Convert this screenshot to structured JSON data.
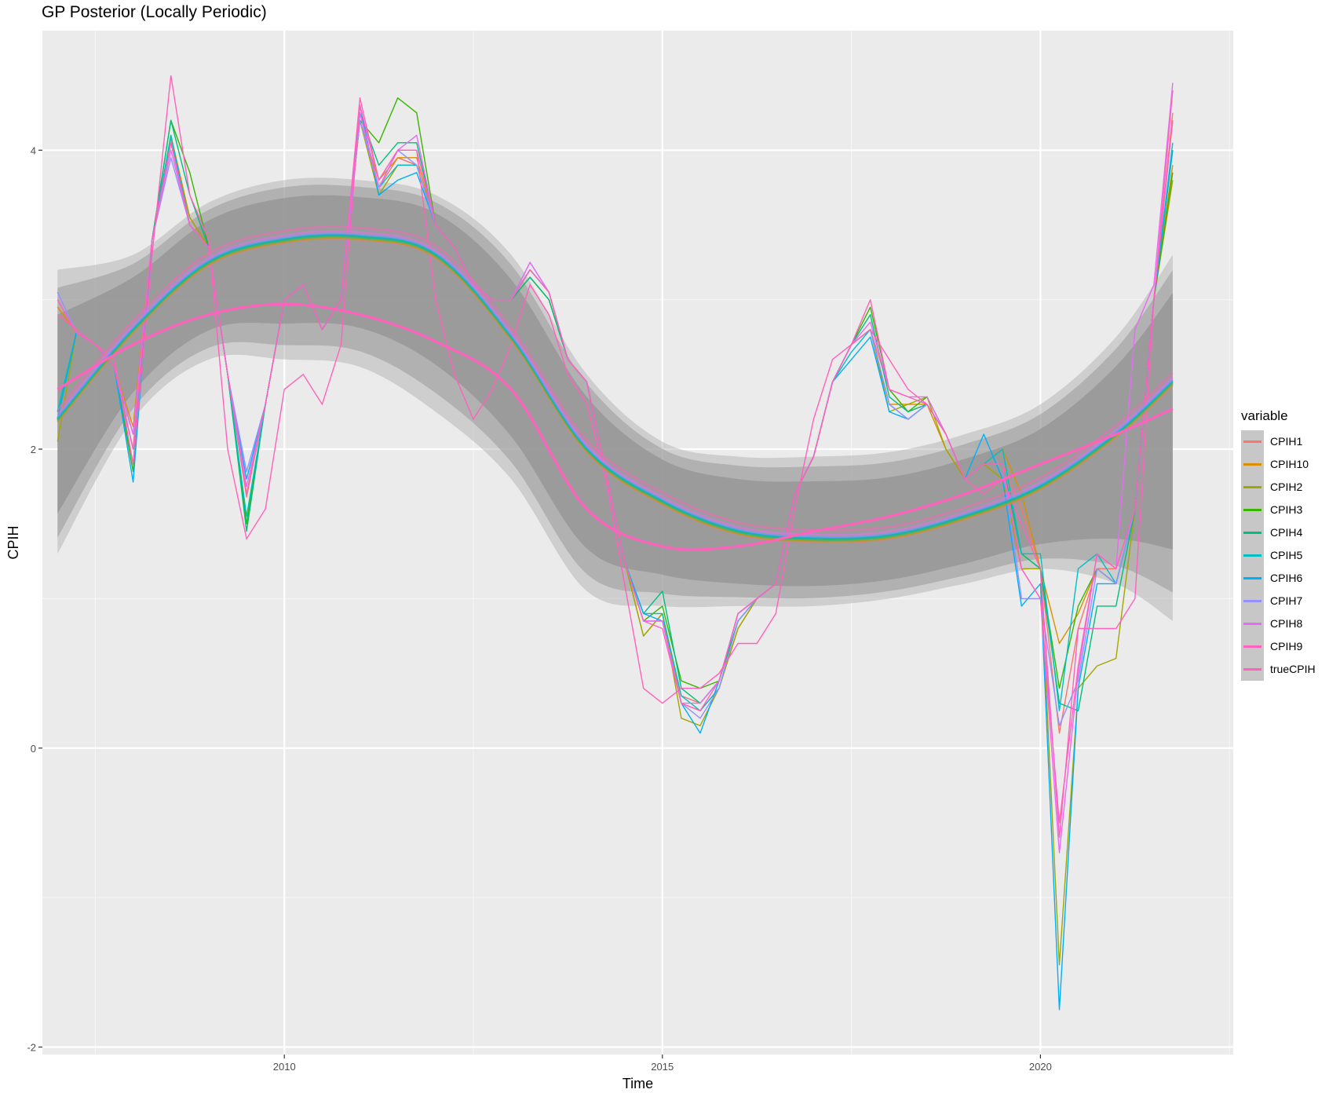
{
  "chart_data": {
    "type": "line",
    "title": "GP Posterior (Locally Periodic)",
    "xlabel": "Time",
    "ylabel": "CPIH",
    "xlim": [
      2006.8,
      2022.55
    ],
    "ylim": [
      -2.05,
      4.8
    ],
    "x_ticks": [
      2010,
      2015,
      2020
    ],
    "y_ticks": [
      -2,
      0,
      2,
      4
    ],
    "grid": true,
    "legend": {
      "title": "variable",
      "placement": "right"
    },
    "colors": {
      "CPIH1": "#F8766D",
      "CPIH10": "#D89000",
      "CPIH2": "#A3A500",
      "CPIH3": "#39B600",
      "CPIH4": "#00BF7D",
      "CPIH5": "#00BFC4",
      "CPIH6": "#00B0F6",
      "CPIH7": "#9590FF",
      "CPIH8": "#E76BF3",
      "CPIH9": "#FF62BC",
      "trueCPIH": "#FF62BC"
    },
    "band_color": "#999999",
    "x": [
      2007.0,
      2007.25,
      2007.5,
      2007.75,
      2008.0,
      2008.25,
      2008.5,
      2008.75,
      2009.0,
      2009.25,
      2009.5,
      2009.75,
      2010.0,
      2010.25,
      2010.5,
      2010.75,
      2011.0,
      2011.25,
      2011.5,
      2011.75,
      2012.0,
      2012.25,
      2012.5,
      2012.75,
      2013.0,
      2013.25,
      2013.5,
      2013.75,
      2014.0,
      2014.25,
      2014.5,
      2014.75,
      2015.0,
      2015.25,
      2015.5,
      2015.75,
      2016.0,
      2016.25,
      2016.5,
      2016.75,
      2017.0,
      2017.25,
      2017.5,
      2017.75,
      2018.0,
      2018.25,
      2018.5,
      2018.75,
      2019.0,
      2019.25,
      2019.5,
      2019.75,
      2020.0,
      2020.25,
      2020.5,
      2020.75,
      2021.0,
      2021.25,
      2021.5,
      2021.75
    ],
    "truth": [
      2.9,
      2.8,
      2.7,
      2.6,
      1.9,
      3.3,
      4.5,
      3.7,
      3.4,
      2.0,
      1.4,
      1.6,
      2.4,
      2.5,
      2.3,
      2.7,
      4.3,
      3.8,
      4.0,
      4.0,
      3.0,
      2.5,
      2.2,
      2.4,
      2.7,
      3.1,
      2.9,
      2.5,
      2.3,
      1.8,
      1.1,
      0.4,
      0.3,
      0.4,
      0.4,
      0.5,
      0.7,
      0.7,
      0.9,
      1.6,
      2.2,
      2.6,
      2.7,
      2.8,
      2.6,
      2.4,
      2.3,
      2.1,
      1.8,
      1.7,
      1.8,
      1.5,
      1.2,
      -0.6,
      0.8,
      0.8,
      0.8,
      1.0,
      3.0,
      4.2
    ],
    "series": [
      {
        "name": "CPIH1",
        "values": [
          2.95,
          2.78,
          2.7,
          2.55,
          2.1,
          3.4,
          4.08,
          3.5,
          3.35,
          2.5,
          1.68,
          2.3,
          3.0,
          3.1,
          2.8,
          3.0,
          4.2,
          3.75,
          3.95,
          3.9,
          3.5,
          3.35,
          3.1,
          3.0,
          3.0,
          3.2,
          3.05,
          2.6,
          2.45,
          1.85,
          1.25,
          0.85,
          0.85,
          0.35,
          0.3,
          0.45,
          0.9,
          1.0,
          1.1,
          1.7,
          1.95,
          2.45,
          2.7,
          2.8,
          2.4,
          2.25,
          2.3,
          2.1,
          1.8,
          1.9,
          1.9,
          1.6,
          1.2,
          0.1,
          0.8,
          1.2,
          1.2,
          1.6,
          3.0,
          4.25
        ]
      },
      {
        "name": "CPIH10",
        "values": [
          2.95,
          2.78,
          2.7,
          2.55,
          2.15,
          3.4,
          4.1,
          3.55,
          3.35,
          2.5,
          1.7,
          2.3,
          3.0,
          3.1,
          2.8,
          3.0,
          4.2,
          3.8,
          3.95,
          3.95,
          3.5,
          3.35,
          3.1,
          3.0,
          3.0,
          3.2,
          3.05,
          2.6,
          2.45,
          1.85,
          1.25,
          0.75,
          0.9,
          0.3,
          0.25,
          0.4,
          0.8,
          1.0,
          1.1,
          1.7,
          1.95,
          2.45,
          2.7,
          2.8,
          2.3,
          2.3,
          2.3,
          2.0,
          1.8,
          1.9,
          2.0,
          1.7,
          1.2,
          0.7,
          0.9,
          1.2,
          1.1,
          1.6,
          3.0,
          3.9
        ]
      },
      {
        "name": "CPIH2",
        "values": [
          2.05,
          2.78,
          2.7,
          2.55,
          2.0,
          3.4,
          4.05,
          3.55,
          3.35,
          2.5,
          1.5,
          2.3,
          3.0,
          3.1,
          2.8,
          3.0,
          4.2,
          3.7,
          3.9,
          3.9,
          3.5,
          3.35,
          3.1,
          3.0,
          3.0,
          3.15,
          3.0,
          2.6,
          2.45,
          1.85,
          1.25,
          0.75,
          0.9,
          0.2,
          0.15,
          0.4,
          0.8,
          1.0,
          1.1,
          1.7,
          1.95,
          2.45,
          2.7,
          2.8,
          2.25,
          2.3,
          2.35,
          2.0,
          1.8,
          1.9,
          1.8,
          1.2,
          1.2,
          -1.45,
          0.4,
          0.55,
          0.6,
          1.6,
          3.0,
          3.8
        ]
      },
      {
        "name": "CPIH3",
        "values": [
          2.2,
          2.78,
          2.7,
          2.55,
          1.85,
          3.4,
          4.2,
          3.85,
          3.35,
          2.5,
          1.5,
          2.3,
          3.0,
          3.1,
          2.8,
          3.0,
          4.2,
          4.05,
          4.35,
          4.25,
          3.5,
          3.35,
          3.1,
          3.0,
          3.0,
          3.15,
          3.0,
          2.6,
          2.45,
          1.85,
          1.25,
          0.85,
          0.95,
          0.45,
          0.4,
          0.45,
          0.85,
          1.0,
          1.1,
          1.7,
          1.95,
          2.45,
          2.7,
          2.95,
          2.4,
          2.25,
          2.35,
          2.1,
          1.8,
          1.9,
          1.9,
          1.3,
          1.2,
          0.4,
          0.95,
          1.2,
          1.1,
          1.6,
          3.0,
          3.85
        ]
      },
      {
        "name": "CPIH4",
        "values": [
          2.25,
          2.78,
          2.7,
          2.55,
          1.9,
          3.4,
          4.2,
          3.7,
          3.35,
          2.5,
          1.45,
          2.3,
          3.0,
          3.1,
          2.8,
          3.0,
          4.25,
          3.9,
          4.05,
          4.05,
          3.5,
          3.35,
          3.1,
          3.0,
          3.0,
          3.15,
          3.0,
          2.6,
          2.45,
          1.85,
          1.25,
          0.9,
          1.05,
          0.4,
          0.3,
          0.45,
          0.85,
          1.0,
          1.1,
          1.7,
          1.95,
          2.45,
          2.7,
          2.9,
          2.35,
          2.25,
          2.3,
          2.1,
          1.8,
          1.9,
          1.9,
          1.3,
          1.2,
          0.3,
          0.25,
          0.95,
          0.95,
          1.6,
          3.0,
          4.0
        ]
      },
      {
        "name": "CPIH5",
        "values": [
          2.25,
          2.78,
          2.7,
          2.55,
          2.0,
          3.4,
          4.1,
          3.5,
          3.35,
          2.5,
          1.55,
          2.3,
          3.0,
          3.1,
          2.8,
          3.0,
          4.25,
          3.75,
          3.9,
          3.9,
          3.5,
          3.35,
          3.1,
          3.0,
          3.0,
          3.2,
          3.05,
          2.6,
          2.45,
          1.85,
          1.25,
          0.9,
          0.9,
          0.35,
          0.25,
          0.4,
          0.85,
          1.0,
          1.1,
          1.7,
          1.95,
          2.45,
          2.65,
          2.8,
          2.3,
          2.2,
          2.3,
          2.1,
          1.8,
          1.9,
          2.0,
          1.3,
          1.3,
          0.25,
          1.2,
          1.3,
          1.1,
          1.6,
          3.0,
          4.05
        ]
      },
      {
        "name": "CPIH6",
        "values": [
          2.2,
          2.78,
          2.7,
          2.55,
          1.78,
          3.4,
          4.05,
          3.5,
          3.35,
          2.5,
          1.8,
          2.3,
          3.0,
          3.1,
          2.8,
          3.0,
          4.3,
          3.7,
          3.8,
          3.85,
          3.5,
          3.35,
          3.1,
          3.0,
          3.0,
          3.2,
          3.05,
          2.6,
          2.45,
          1.85,
          1.25,
          0.9,
          0.85,
          0.3,
          0.1,
          0.45,
          0.9,
          1.0,
          1.1,
          1.7,
          1.95,
          2.45,
          2.6,
          2.75,
          2.25,
          2.2,
          2.3,
          2.1,
          1.8,
          2.1,
          1.8,
          0.95,
          1.1,
          -1.75,
          0.4,
          1.1,
          1.1,
          1.6,
          3.0,
          4.0
        ]
      },
      {
        "name": "CPIH7",
        "values": [
          3.05,
          2.78,
          2.7,
          2.55,
          2.1,
          3.4,
          3.95,
          3.5,
          3.35,
          2.5,
          1.85,
          2.3,
          3.0,
          3.1,
          2.8,
          3.0,
          4.2,
          3.75,
          4.0,
          3.9,
          3.5,
          3.35,
          3.1,
          3.0,
          3.0,
          3.25,
          3.05,
          2.6,
          2.45,
          1.85,
          1.25,
          0.85,
          0.85,
          0.3,
          0.2,
          0.4,
          0.85,
          1.0,
          1.1,
          1.7,
          1.95,
          2.45,
          2.7,
          2.8,
          2.3,
          2.2,
          2.3,
          2.1,
          1.8,
          1.9,
          1.9,
          1.0,
          1.0,
          0.15,
          0.45,
          1.2,
          1.1,
          1.6,
          3.0,
          4.2
        ]
      },
      {
        "name": "CPIH8",
        "values": [
          3.0,
          2.78,
          2.7,
          2.55,
          2.1,
          3.4,
          4.0,
          3.5,
          3.35,
          2.5,
          1.75,
          2.3,
          3.0,
          3.1,
          2.8,
          3.0,
          4.25,
          3.75,
          4.0,
          4.1,
          3.5,
          3.35,
          3.1,
          3.0,
          3.0,
          3.25,
          3.05,
          2.6,
          2.45,
          1.85,
          1.25,
          0.85,
          0.85,
          0.3,
          0.3,
          0.45,
          0.9,
          1.0,
          1.1,
          1.7,
          1.95,
          2.45,
          2.7,
          2.85,
          2.4,
          2.35,
          2.35,
          2.1,
          1.8,
          1.9,
          1.9,
          1.2,
          1.0,
          -0.7,
          0.5,
          1.3,
          1.2,
          2.8,
          3.1,
          4.45
        ]
      },
      {
        "name": "CPIH9",
        "values": [
          3.0,
          2.78,
          2.7,
          2.55,
          2.0,
          3.4,
          4.05,
          3.5,
          3.35,
          2.5,
          1.7,
          2.3,
          3.0,
          3.1,
          2.8,
          3.0,
          4.35,
          3.8,
          4.0,
          4.0,
          3.5,
          3.35,
          3.1,
          3.0,
          3.0,
          3.2,
          3.05,
          2.6,
          2.45,
          1.85,
          1.25,
          0.85,
          0.8,
          0.3,
          0.25,
          0.45,
          0.9,
          1.0,
          1.1,
          1.7,
          1.95,
          2.45,
          2.7,
          3.0,
          2.4,
          2.35,
          2.3,
          2.1,
          1.8,
          1.9,
          1.9,
          1.2,
          1.0,
          -0.5,
          0.55,
          1.3,
          1.2,
          1.6,
          3.0,
          4.4
        ]
      }
    ],
    "gp_posterior": {
      "mean_x": [
        2007.0,
        2008.0,
        2009.0,
        2010.0,
        2011.0,
        2012.0,
        2013.0,
        2014.0,
        2015.0,
        2016.0,
        2017.0,
        2018.0,
        2019.0,
        2020.0,
        2021.0,
        2021.75
      ],
      "mean": [
        2.2,
        2.8,
        3.25,
        3.4,
        3.42,
        3.3,
        2.75,
        2.0,
        1.65,
        1.45,
        1.4,
        1.42,
        1.55,
        1.75,
        2.1,
        2.45
      ],
      "band_upper": [
        3.2,
        3.3,
        3.65,
        3.8,
        3.8,
        3.7,
        3.3,
        2.5,
        2.05,
        1.95,
        1.95,
        1.98,
        2.1,
        2.3,
        2.75,
        3.3
      ],
      "band_lower": [
        1.3,
        2.2,
        2.6,
        2.6,
        2.55,
        2.25,
        1.8,
        1.05,
        0.95,
        0.95,
        0.95,
        1.0,
        1.1,
        1.2,
        1.1,
        0.85
      ],
      "true_mean": [
        2.4,
        2.7,
        2.9,
        2.97,
        2.9,
        2.72,
        2.4,
        1.6,
        1.35,
        1.35,
        1.45,
        1.55,
        1.7,
        1.9,
        2.1,
        2.27
      ]
    }
  },
  "legend_items": [
    "CPIH1",
    "CPIH10",
    "CPIH2",
    "CPIH3",
    "CPIH4",
    "CPIH5",
    "CPIH6",
    "CPIH7",
    "CPIH8",
    "CPIH9",
    "trueCPIH"
  ]
}
